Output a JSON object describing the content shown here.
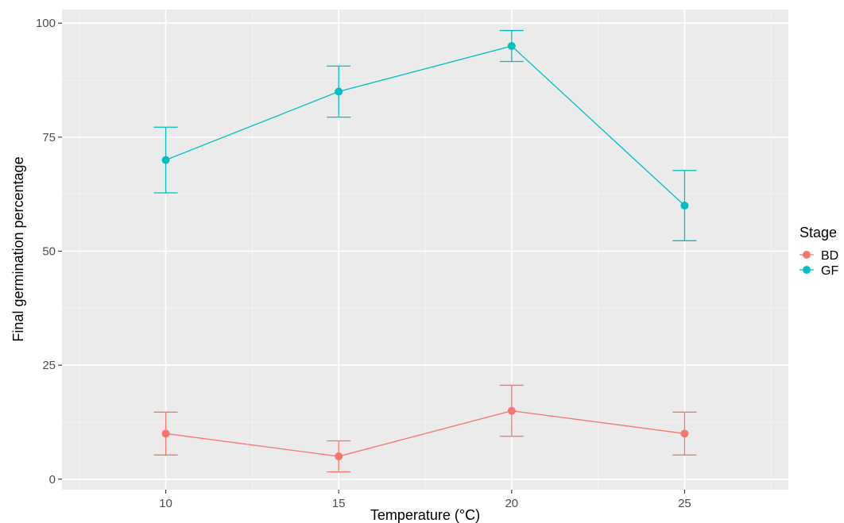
{
  "chart_data": {
    "type": "line",
    "title": "",
    "xlabel": "Temperature (°C)",
    "ylabel": "Final germination percentage",
    "x": [
      10,
      15,
      20,
      25
    ],
    "xticks": [
      10,
      15,
      20,
      25
    ],
    "yticks": [
      0,
      25,
      50,
      75,
      100
    ],
    "xlim": [
      7,
      28
    ],
    "ylim": [
      -2.3,
      103
    ],
    "grid": true,
    "legend": {
      "title": "Stage",
      "position": "right"
    },
    "series": [
      {
        "name": "BD",
        "color": "#F8766D",
        "values": [
          10,
          5,
          15,
          10
        ],
        "error_low": [
          5.3,
          1.6,
          9.4,
          5.3
        ],
        "error_high": [
          14.7,
          8.4,
          20.6,
          14.7
        ]
      },
      {
        "name": "GF",
        "color": "#00BFC4",
        "values": [
          70,
          85,
          95,
          60
        ],
        "error_low": [
          62.8,
          79.4,
          91.6,
          52.3
        ],
        "error_high": [
          77.2,
          90.6,
          98.4,
          67.7
        ]
      }
    ]
  }
}
